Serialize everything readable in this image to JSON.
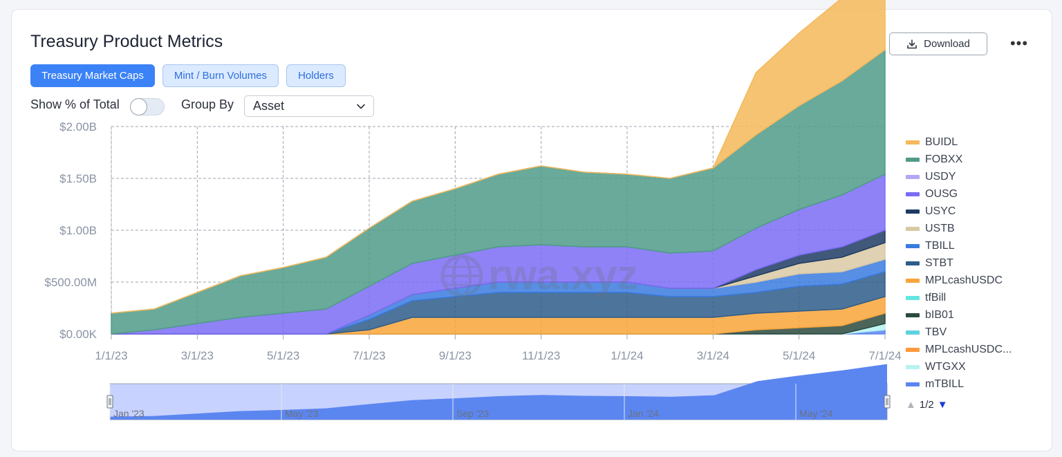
{
  "title": "Treasury Product Metrics",
  "download_label": "Download",
  "more_label": "•••",
  "tabs": [
    {
      "label": "Treasury Market Caps",
      "active": true
    },
    {
      "label": "Mint / Burn Volumes",
      "active": false
    },
    {
      "label": "Holders",
      "active": false
    }
  ],
  "controls": {
    "show_pct_label": "Show % of Total",
    "show_pct_on": false,
    "group_by_label": "Group By",
    "group_by_value": "Asset"
  },
  "watermark": "rwa.xyz",
  "pager": {
    "text": "1/2",
    "prev_icon": "triangle-up",
    "next_icon": "triangle-down"
  },
  "colors": {
    "accent": "#3b82f6",
    "navigator_fill": "#5b86f0"
  },
  "chart_data": {
    "type": "area",
    "stacked": true,
    "y_ticks": [
      "$2.00B",
      "$1.50B",
      "$1.00B",
      "$500.00M",
      "$0.00K"
    ],
    "ylim": [
      0,
      2000000000
    ],
    "x_ticks": [
      "1/1/23",
      "3/1/23",
      "5/1/23",
      "7/1/23",
      "9/1/23",
      "11/1/23",
      "1/1/24",
      "3/1/24",
      "5/1/24",
      "7/1/24"
    ],
    "x": [
      "1/1/23",
      "2/1/23",
      "3/1/23",
      "4/1/23",
      "5/1/23",
      "6/1/23",
      "7/1/23",
      "8/1/23",
      "9/1/23",
      "10/1/23",
      "11/1/23",
      "12/1/23",
      "1/1/24",
      "2/1/24",
      "3/1/24",
      "4/1/24",
      "5/1/24",
      "6/1/24",
      "7/1/24"
    ],
    "grid": true,
    "legend_position": "right",
    "series": [
      {
        "name": "mTBILL",
        "color": "#5b86f0",
        "values": [
          0,
          0,
          0,
          0,
          0,
          0,
          0,
          0,
          0,
          0,
          0,
          0,
          0,
          0,
          0,
          0,
          0,
          0,
          2
        ]
      },
      {
        "name": "WTGXX",
        "color": "#b6f3f1",
        "values": [
          0,
          0,
          0,
          0,
          0,
          0,
          0,
          0,
          0,
          0,
          0,
          0,
          0,
          0,
          0,
          0,
          0,
          0,
          3
        ]
      },
      {
        "name": "MPLcashUSDC...",
        "color": "#ff9a3c",
        "values": [
          0,
          0,
          0,
          0,
          0,
          0,
          0,
          0,
          0,
          0,
          0,
          0,
          0,
          0,
          0,
          0,
          0,
          0,
          0
        ]
      },
      {
        "name": "TBV",
        "color": "#5fd1df",
        "values": [
          0,
          0,
          0,
          0,
          0,
          0,
          0,
          0,
          0,
          0,
          0,
          0,
          0,
          0,
          0,
          0,
          0,
          0,
          0
        ]
      },
      {
        "name": "bIB01",
        "color": "#2c4a3e",
        "values": [
          0,
          0,
          0,
          0,
          0,
          0,
          0,
          0,
          0,
          0,
          0,
          0,
          0,
          0,
          0,
          2,
          3,
          4,
          5
        ]
      },
      {
        "name": "tfBill",
        "color": "#62e6e1",
        "values": [
          0,
          0,
          0,
          0,
          0,
          0,
          0,
          0,
          0,
          0,
          0,
          0,
          0,
          0,
          0,
          0,
          0,
          0,
          0
        ]
      },
      {
        "name": "MPLcashUSDC",
        "color": "#f9a43a",
        "values": [
          0,
          0,
          0,
          0,
          0,
          0,
          2,
          8,
          8,
          8,
          8,
          8,
          8,
          8,
          8,
          8,
          8,
          8,
          8
        ]
      },
      {
        "name": "STBT",
        "color": "#2e5c8a",
        "values": [
          0,
          0,
          0,
          0,
          0,
          0,
          5,
          8,
          10,
          12,
          12,
          12,
          12,
          10,
          10,
          10,
          12,
          12,
          12
        ]
      },
      {
        "name": "TBILL",
        "color": "#3a7be0",
        "values": [
          0,
          0,
          0,
          0,
          0,
          0,
          2,
          3,
          4,
          5,
          5,
          5,
          5,
          4,
          4,
          5,
          6,
          6,
          6
        ]
      },
      {
        "name": "USTB",
        "color": "#d9c9a3",
        "values": [
          0,
          0,
          0,
          0,
          0,
          0,
          0,
          0,
          0,
          0,
          0,
          0,
          0,
          0,
          0,
          3,
          5,
          7,
          8
        ]
      },
      {
        "name": "USYC",
        "color": "#1f3b63",
        "values": [
          0,
          0,
          0,
          0,
          0,
          0,
          0,
          0,
          0,
          0,
          0,
          0,
          0,
          0,
          0,
          3,
          4,
          5,
          6
        ]
      },
      {
        "name": "OUSG",
        "color": "#7b6cf6",
        "values": [
          0,
          2,
          5,
          8,
          10,
          12,
          14,
          15,
          16,
          17,
          18,
          17,
          17,
          17,
          18,
          20,
          22,
          25,
          27
        ]
      },
      {
        "name": "USDY",
        "color": "#b3a6f7",
        "values": [
          0,
          0,
          0,
          0,
          0,
          0,
          0,
          0,
          0,
          0,
          0,
          0,
          0,
          0,
          0,
          0,
          0,
          0,
          0
        ]
      },
      {
        "name": "FOBXX",
        "color": "#4f9b88",
        "values": [
          10,
          10,
          15,
          20,
          22,
          25,
          28,
          30,
          32,
          35,
          38,
          36,
          35,
          36,
          40,
          45,
          50,
          55,
          60
        ]
      },
      {
        "name": "BUIDL",
        "color": "#f5b85a",
        "values": [
          0,
          0,
          0,
          0,
          0,
          0,
          0,
          0,
          0,
          0,
          0,
          0,
          0,
          0,
          0,
          30,
          35,
          40,
          45
        ]
      }
    ]
  },
  "navigator": {
    "labels": [
      "Jan '23",
      "May '23",
      "Sep '23",
      "Jan '24",
      "May '24"
    ]
  },
  "legend": [
    "BUIDL",
    "FOBXX",
    "USDY",
    "OUSG",
    "USYC",
    "USTB",
    "TBILL",
    "STBT",
    "MPLcashUSDC",
    "tfBill",
    "bIB01",
    "TBV",
    "MPLcashUSDC...",
    "WTGXX",
    "mTBILL"
  ]
}
